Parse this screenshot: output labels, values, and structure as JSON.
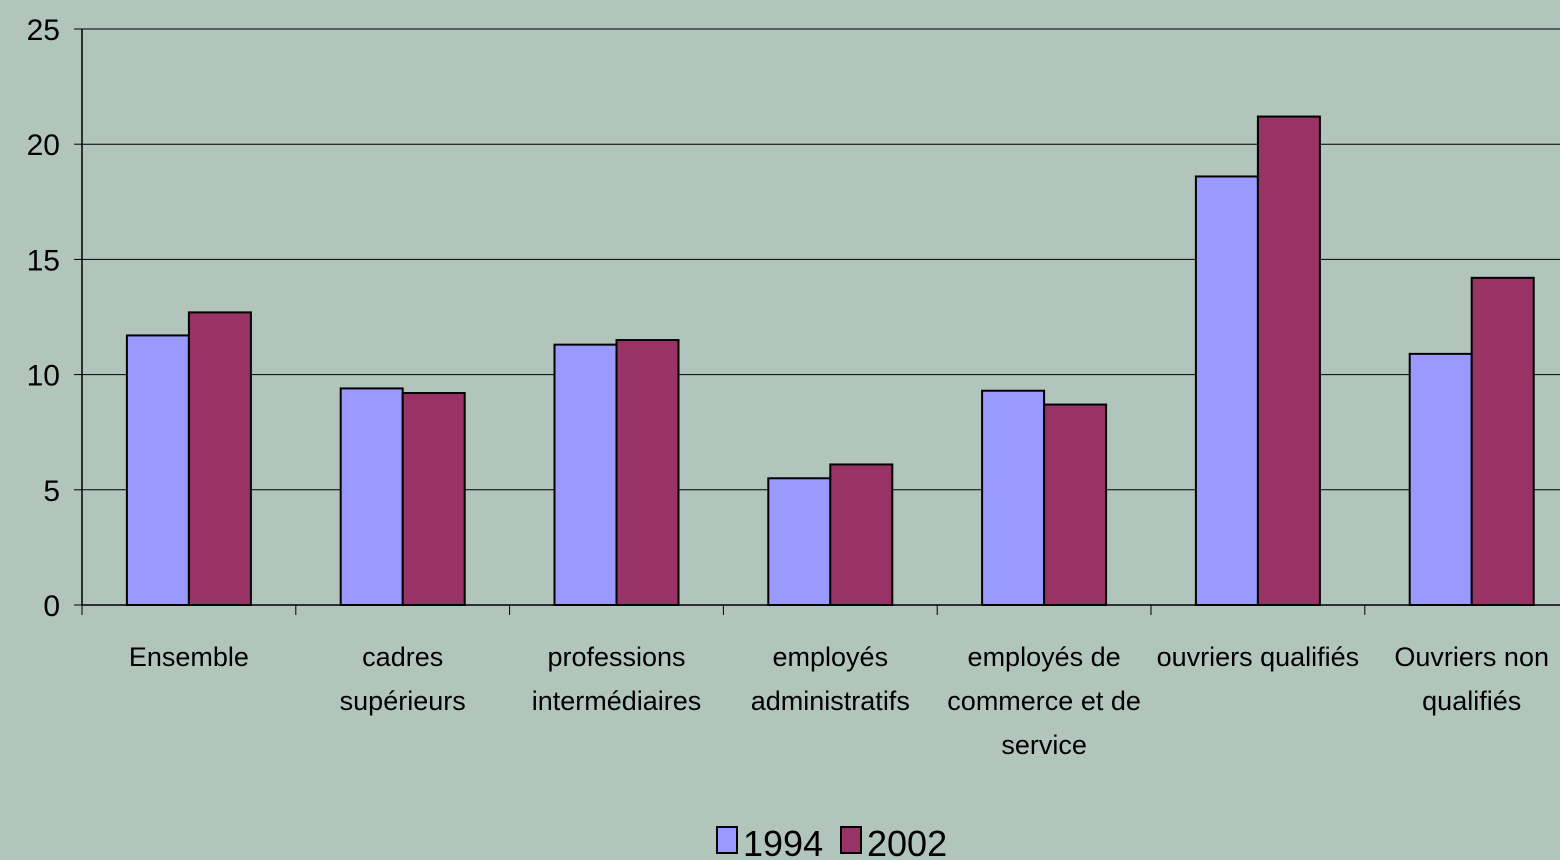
{
  "chart_data": {
    "type": "bar",
    "categories": [
      [
        "Ensemble"
      ],
      [
        "cadres",
        "supérieurs"
      ],
      [
        "professions",
        "intermédiaires"
      ],
      [
        "employés",
        "administratifs"
      ],
      [
        "employés de",
        "commerce et de",
        "service"
      ],
      [
        "ouvriers qualifiés"
      ],
      [
        "Ouvriers non",
        "qualifiés"
      ]
    ],
    "series": [
      {
        "name": "1994",
        "color": "#9999ff",
        "values": [
          11.7,
          9.4,
          11.3,
          5.5,
          9.3,
          18.6,
          10.9
        ]
      },
      {
        "name": "2002",
        "color": "#993366",
        "values": [
          12.7,
          9.2,
          11.5,
          6.1,
          8.7,
          21.2,
          14.2
        ]
      }
    ],
    "yticks": [
      "0",
      "5",
      "10",
      "15",
      "20",
      "25"
    ],
    "ylim": [
      0,
      25
    ],
    "grid": true,
    "legend_position": "bottom"
  }
}
